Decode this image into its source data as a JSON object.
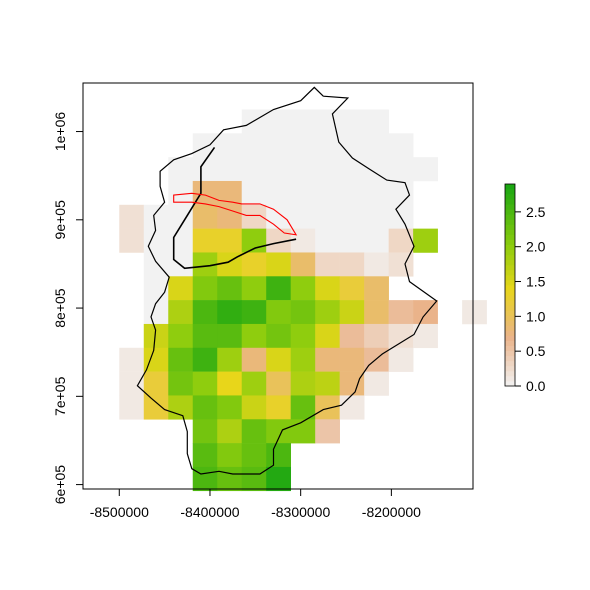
{
  "chart_data": {
    "type": "heatmap",
    "title": "",
    "xlabel": "",
    "ylabel": "",
    "xlim": [
      -8540000,
      -8110000
    ],
    "ylim": [
      595000,
      1055000
    ],
    "grid": false,
    "legend_position": "right",
    "x_ticks": [
      {
        "value": -8500000,
        "label": "-8500000"
      },
      {
        "value": -8400000,
        "label": "-8400000"
      },
      {
        "value": -8300000,
        "label": "-8300000"
      },
      {
        "value": -8200000,
        "label": "-8200000"
      }
    ],
    "y_ticks": [
      {
        "value": 600000,
        "label": "6e+05"
      },
      {
        "value": 700000,
        "label": "7e+05"
      },
      {
        "value": 800000,
        "label": "8e+05"
      },
      {
        "value": 900000,
        "label": "9e+05"
      },
      {
        "value": 1000000,
        "label": "1e+06"
      }
    ],
    "raster": {
      "x0": -8500000,
      "y_top": 1025000,
      "cell": 27000,
      "rows": [
        [
          null,
          null,
          null,
          null,
          null,
          0.0,
          0.0,
          0.0,
          0.0,
          0.0,
          0.0,
          null,
          null,
          null,
          null,
          null
        ],
        [
          null,
          null,
          null,
          0.0,
          0.0,
          0.0,
          0.0,
          0.0,
          0.0,
          0.0,
          0.0,
          0.0,
          null,
          null,
          null,
          null
        ],
        [
          null,
          null,
          0.0,
          0.0,
          0.0,
          0.0,
          0.0,
          0.0,
          0.0,
          0.0,
          0.0,
          0.0,
          0.0,
          null,
          null,
          null
        ],
        [
          null,
          null,
          0.0,
          0.8,
          0.8,
          0.0,
          0.0,
          0.0,
          0.0,
          0.0,
          0.0,
          0.0,
          null,
          null,
          null,
          null
        ],
        [
          0.2,
          0.0,
          0.0,
          0.9,
          0.8,
          0.3,
          0.0,
          0.0,
          0.0,
          0.0,
          0.0,
          0.0,
          null,
          null,
          null,
          null
        ],
        [
          0.2,
          0.0,
          0.0,
          1.3,
          1.3,
          2.0,
          0.3,
          0.1,
          0.0,
          0.0,
          0.0,
          0.3,
          1.9,
          null,
          null,
          null
        ],
        [
          null,
          0.0,
          0.0,
          1.9,
          1.5,
          1.3,
          1.5,
          0.9,
          0.3,
          0.3,
          0.1,
          0.2,
          null,
          null,
          null,
          null
        ],
        [
          null,
          0.0,
          1.5,
          2.1,
          2.3,
          2.0,
          2.6,
          2.0,
          1.5,
          1.2,
          0.9,
          null,
          null,
          null,
          null,
          null
        ],
        [
          null,
          0.0,
          1.8,
          2.5,
          2.7,
          2.6,
          2.1,
          2.2,
          1.9,
          1.6,
          0.9,
          0.6,
          0.7,
          null,
          0.1,
          null
        ],
        [
          null,
          1.6,
          2.0,
          2.4,
          2.4,
          2.0,
          2.2,
          2.0,
          1.5,
          0.6,
          0.4,
          0.2,
          0.1,
          null,
          null,
          null
        ],
        [
          0.1,
          1.5,
          2.3,
          2.6,
          1.9,
          0.8,
          1.5,
          1.9,
          0.8,
          0.8,
          0.6,
          0.1,
          null,
          null,
          null,
          null
        ],
        [
          0.1,
          1.2,
          2.2,
          2.0,
          1.4,
          1.9,
          1.0,
          1.8,
          1.7,
          0.8,
          0.1,
          null,
          null,
          null,
          null,
          null
        ],
        [
          0.1,
          1.2,
          1.8,
          2.3,
          2.1,
          1.6,
          1.3,
          2.3,
          1.0,
          0.1,
          null,
          null,
          null,
          null,
          null,
          null
        ],
        [
          null,
          null,
          null,
          2.2,
          1.8,
          2.3,
          2.1,
          2.1,
          0.5,
          null,
          null,
          null,
          null,
          null,
          null,
          null
        ],
        [
          null,
          null,
          null,
          2.4,
          2.1,
          2.3,
          2.5,
          null,
          null,
          null,
          null,
          null,
          null,
          null,
          null,
          null
        ],
        [
          null,
          null,
          null,
          2.5,
          2.3,
          2.4,
          2.8,
          null,
          null,
          null,
          null,
          null,
          null,
          null,
          null,
          null
        ]
      ]
    },
    "outline": [
      [
        -8275000,
        1040000
      ],
      [
        -8248000,
        1038000
      ],
      [
        -8265000,
        1020000
      ],
      [
        -8258000,
        988000
      ],
      [
        -8243000,
        970000
      ],
      [
        -8225000,
        958000
      ],
      [
        -8205000,
        945000
      ],
      [
        -8185000,
        942000
      ],
      [
        -8180000,
        928000
      ],
      [
        -8195000,
        912000
      ],
      [
        -8185000,
        895000
      ],
      [
        -8175000,
        870000
      ],
      [
        -8185000,
        850000
      ],
      [
        -8180000,
        830000
      ],
      [
        -8150000,
        808000
      ],
      [
        -8165000,
        790000
      ],
      [
        -8175000,
        770000
      ],
      [
        -8210000,
        748000
      ],
      [
        -8225000,
        735000
      ],
      [
        -8235000,
        720000
      ],
      [
        -8240000,
        705000
      ],
      [
        -8255000,
        690000
      ],
      [
        -8275000,
        685000
      ],
      [
        -8300000,
        670000
      ],
      [
        -8320000,
        662000
      ],
      [
        -8330000,
        640000
      ],
      [
        -8330000,
        622000
      ],
      [
        -8345000,
        612000
      ],
      [
        -8375000,
        612000
      ],
      [
        -8390000,
        615000
      ],
      [
        -8410000,
        612000
      ],
      [
        -8420000,
        618000
      ],
      [
        -8425000,
        635000
      ],
      [
        -8425000,
        660000
      ],
      [
        -8430000,
        678000
      ],
      [
        -8450000,
        685000
      ],
      [
        -8465000,
        698000
      ],
      [
        -8480000,
        712000
      ],
      [
        -8470000,
        730000
      ],
      [
        -8462000,
        752000
      ],
      [
        -8460000,
        775000
      ],
      [
        -8465000,
        790000
      ],
      [
        -8460000,
        805000
      ],
      [
        -8450000,
        818000
      ],
      [
        -8445000,
        835000
      ],
      [
        -8460000,
        853000
      ],
      [
        -8468000,
        870000
      ],
      [
        -8460000,
        888000
      ],
      [
        -8462000,
        905000
      ],
      [
        -8450000,
        920000
      ],
      [
        -8455000,
        938000
      ],
      [
        -8455000,
        955000
      ],
      [
        -8440000,
        968000
      ],
      [
        -8420000,
        975000
      ],
      [
        -8400000,
        985000
      ],
      [
        -8385000,
        1002000
      ],
      [
        -8360000,
        1007000
      ],
      [
        -8330000,
        1025000
      ],
      [
        -8300000,
        1035000
      ],
      [
        -8285000,
        1050000
      ],
      [
        -8275000,
        1040000
      ]
    ],
    "inner_boundary": [
      [
        -8395000,
        982000
      ],
      [
        -8410000,
        960000
      ],
      [
        -8410000,
        930000
      ],
      [
        -8425000,
        905000
      ],
      [
        -8440000,
        880000
      ],
      [
        -8440000,
        855000
      ],
      [
        -8428000,
        845000
      ],
      [
        -8400000,
        848000
      ],
      [
        -8380000,
        852000
      ],
      [
        -8370000,
        858000
      ],
      [
        -8350000,
        868000
      ],
      [
        -8330000,
        873000
      ],
      [
        -8305000,
        878000
      ]
    ],
    "river": [
      [
        -8440000,
        928000
      ],
      [
        -8420000,
        930000
      ],
      [
        -8405000,
        928000
      ],
      [
        -8390000,
        922000
      ],
      [
        -8375000,
        920000
      ],
      [
        -8365000,
        918000
      ],
      [
        -8345000,
        918000
      ],
      [
        -8330000,
        912000
      ],
      [
        -8315000,
        900000
      ],
      [
        -8305000,
        883000
      ],
      [
        -8318000,
        885000
      ],
      [
        -8330000,
        895000
      ],
      [
        -8345000,
        905000
      ],
      [
        -8360000,
        905000
      ],
      [
        -8375000,
        910000
      ],
      [
        -8390000,
        915000
      ],
      [
        -8405000,
        918000
      ],
      [
        -8420000,
        920000
      ],
      [
        -8440000,
        920000
      ]
    ],
    "colorbar": {
      "min": 0.0,
      "max": 2.9,
      "ticks": [
        {
          "value": 0.0,
          "label": "0.0"
        },
        {
          "value": 0.5,
          "label": "0.5"
        },
        {
          "value": 1.0,
          "label": "1.0"
        },
        {
          "value": 1.5,
          "label": "1.5"
        },
        {
          "value": 2.0,
          "label": "2.0"
        },
        {
          "value": 2.5,
          "label": "2.5"
        }
      ],
      "stops": [
        {
          "v": 0.0,
          "color": "#f2f2f2"
        },
        {
          "v": 0.7,
          "color": "#eab38a"
        },
        {
          "v": 1.4,
          "color": "#e8d61a"
        },
        {
          "v": 2.0,
          "color": "#8fcd0e"
        },
        {
          "v": 2.9,
          "color": "#16a512"
        }
      ]
    },
    "colors": {
      "outline": "#000000",
      "river": "#ff0000",
      "axes": "#000000"
    }
  }
}
